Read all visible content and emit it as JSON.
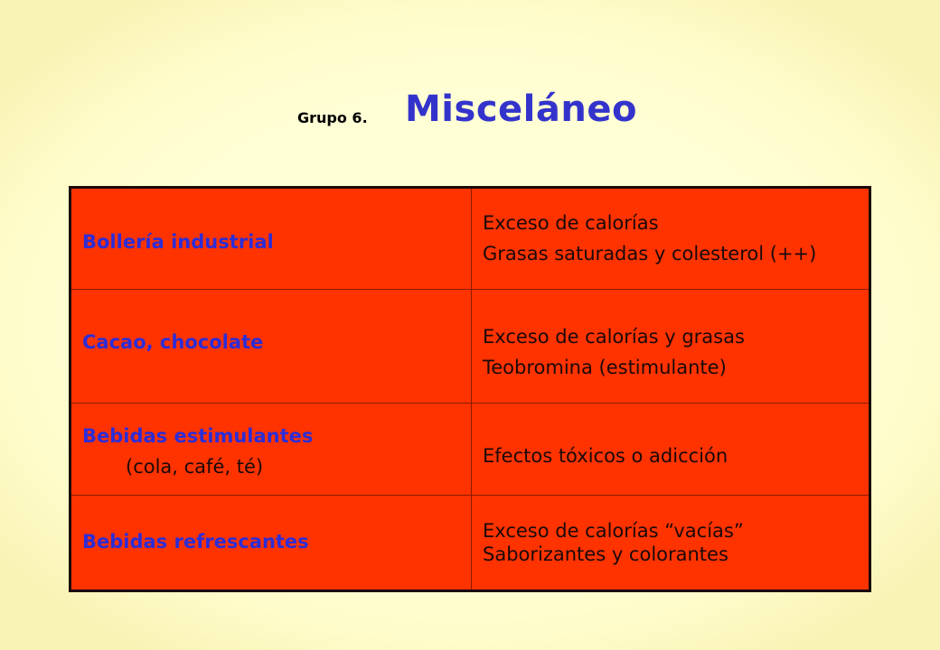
{
  "header": {
    "group_label": "Grupo 6.",
    "title": "Misceláneo"
  },
  "table": {
    "rows": [
      {
        "food": "Bollería industrial",
        "effects": [
          "Exceso de calorías",
          "Grasas saturadas y colesterol (++)"
        ]
      },
      {
        "food": "Cacao, chocolate",
        "effects": [
          "Exceso de calorías y grasas",
          "Teobromina (estimulante)"
        ]
      },
      {
        "food": "Bebidas estimulantes",
        "food_detail": "(cola, café, té)",
        "effects": [
          "Efectos tóxicos o adicción"
        ]
      },
      {
        "food": "Bebidas refrescantes",
        "effects": [
          "Exceso de calorías “vacías”",
          "Saborizantes y colorantes"
        ]
      }
    ]
  },
  "colors": {
    "background": "#ffffd4",
    "table_fill": "#ff3300",
    "food_text": "#2d2dd6",
    "title_text": "#3333cc"
  }
}
